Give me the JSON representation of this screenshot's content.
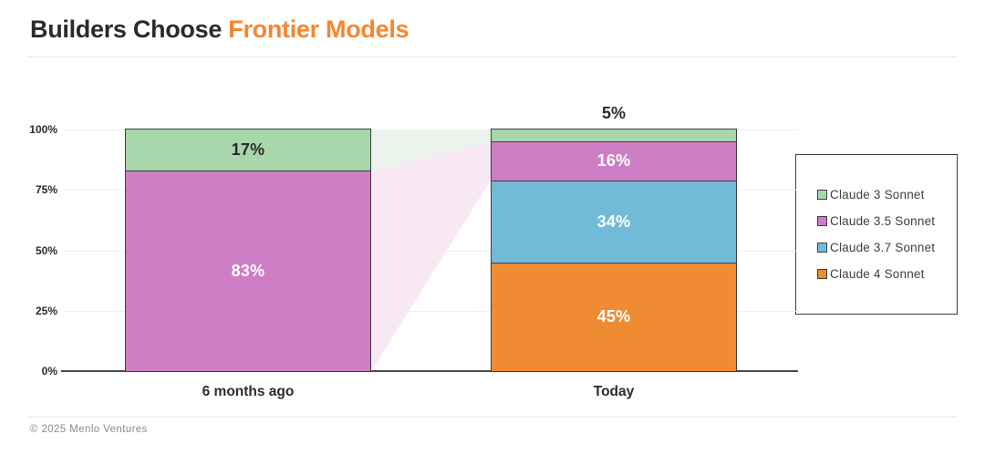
{
  "header": {
    "title_dark": "Builders Choose",
    "title_accent": "Frontier Models",
    "accent_color": "#f6862f"
  },
  "footer": {
    "copyright": "© 2025 Menlo Ventures"
  },
  "chart_data": {
    "type": "bar",
    "stacked": true,
    "title": "Builders Choose Frontier Models",
    "categories": [
      "6 months ago",
      "Today"
    ],
    "series": [
      {
        "name": "Claude 3 Sonnet",
        "color": "#a7d7aa",
        "band_color": "#e9f3ea",
        "label_color": "#2b2b2b",
        "values": [
          17,
          5
        ]
      },
      {
        "name": "Claude 3.5 Sonnet",
        "color": "#cd7ec4",
        "band_color": "#f6e6f2",
        "label_color": "#ffffff",
        "values": [
          83,
          16
        ]
      },
      {
        "name": "Claude 3.7 Sonnet",
        "color": "#72bbd8",
        "label_color": "#ffffff",
        "values": [
          0,
          34
        ]
      },
      {
        "name": "Claude 4 Sonnet",
        "color": "#ef8b33",
        "label_color": "#ffffff",
        "values": [
          0,
          45
        ]
      }
    ],
    "value_suffix": "%",
    "ticks": [
      {
        "label": "0%",
        "value": 0
      },
      {
        "label": "25%",
        "value": 25
      },
      {
        "label": "50%",
        "value": 50
      },
      {
        "label": "75%",
        "value": 75
      },
      {
        "label": "100%",
        "value": 100
      }
    ],
    "ylim": [
      0,
      100
    ],
    "grid": true,
    "legend_position": "right",
    "axis_color": "#4a4a4a",
    "segment_border_color": "#3d3d3d"
  }
}
